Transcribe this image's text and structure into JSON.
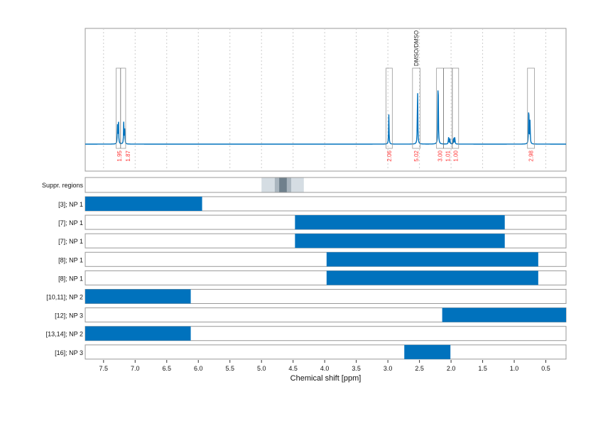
{
  "chart_data": {
    "type": "line",
    "xlabel": "Chemical shift [ppm]",
    "xlim": [
      7.79,
      0.18
    ],
    "x_reversed": true,
    "grid": true,
    "x_ticks": [
      7.5,
      7.0,
      6.5,
      6.0,
      5.5,
      5.0,
      4.5,
      4.0,
      3.5,
      3.0,
      2.5,
      2.0,
      1.5,
      1.0,
      0.5
    ],
    "x_tick_labels": [
      "7.5",
      "7.0",
      "6.5",
      "6.0",
      "5.5",
      "5.0",
      "4.5",
      "4.0",
      "3.5",
      "3.0",
      "2.5",
      "2.0",
      "1.5",
      "1.0",
      "0.5"
    ],
    "spectrum_color": "#0072bd",
    "bar_color": "#0072bd",
    "integral_label_color": "#ff3333",
    "spectrum_peaks": [
      {
        "ppm": 7.28,
        "intensity": 0.24
      },
      {
        "ppm": 7.265,
        "intensity": 0.36
      },
      {
        "ppm": 7.18,
        "intensity": 0.3
      },
      {
        "ppm": 7.165,
        "intensity": 0.18
      },
      {
        "ppm": 2.985,
        "intensity": 0.38
      },
      {
        "ppm": 2.53,
        "intensity": 0.78
      },
      {
        "ppm": 2.205,
        "intensity": 0.96
      },
      {
        "ppm": 2.04,
        "intensity": 0.09
      },
      {
        "ppm": 2.02,
        "intensity": 0.09
      },
      {
        "ppm": 1.96,
        "intensity": 0.09
      },
      {
        "ppm": 1.94,
        "intensity": 0.09
      },
      {
        "ppm": 0.77,
        "intensity": 0.55
      },
      {
        "ppm": 0.75,
        "intensity": 0.3
      }
    ],
    "integral_regions": [
      {
        "from": 7.3,
        "to": 7.15,
        "dividers": [
          7.23
        ],
        "labels": [
          "1.95",
          "1.87"
        ]
      },
      {
        "from": 3.03,
        "to": 2.93,
        "dividers": [],
        "labels": [
          "2.06"
        ]
      },
      {
        "from": 2.61,
        "to": 2.49,
        "dividers": [],
        "labels": [
          "5.02"
        ],
        "annotation": "DMSO/DMSO"
      },
      {
        "from": 2.23,
        "to": 1.88,
        "dividers": [
          2.12,
          1.98
        ],
        "labels": [
          "3.00",
          "1.01",
          "1.00"
        ]
      },
      {
        "from": 0.79,
        "to": 0.68,
        "dividers": [],
        "labels": [
          "2.98"
        ]
      }
    ],
    "suppression": {
      "label": "Suppr. regions",
      "bands": [
        {
          "from": 5.0,
          "to": 4.33,
          "color": "#d5dde3"
        },
        {
          "from": 4.79,
          "to": 4.53,
          "color": "#aab6bf"
        },
        {
          "from": 4.72,
          "to": 4.6,
          "color": "#6f808c"
        }
      ]
    },
    "bars": [
      {
        "label": "[3]; NP 1",
        "from": 7.79,
        "to": 5.94
      },
      {
        "label": "[7]; NP 1",
        "from": 4.47,
        "to": 1.15
      },
      {
        "label": "[7]; NP 1",
        "from": 4.47,
        "to": 1.15
      },
      {
        "label": "[8]; NP 1",
        "from": 3.97,
        "to": 0.62
      },
      {
        "label": "[8]; NP 1",
        "from": 3.97,
        "to": 0.62
      },
      {
        "label": "[10,11]; NP 2",
        "from": 7.79,
        "to": 6.12
      },
      {
        "label": "[12]; NP 3",
        "from": 2.14,
        "to": 0.18
      },
      {
        "label": "[13,14]; NP 2",
        "from": 7.79,
        "to": 6.12
      },
      {
        "label": "[16]; NP 3",
        "from": 2.74,
        "to": 2.01
      }
    ]
  }
}
